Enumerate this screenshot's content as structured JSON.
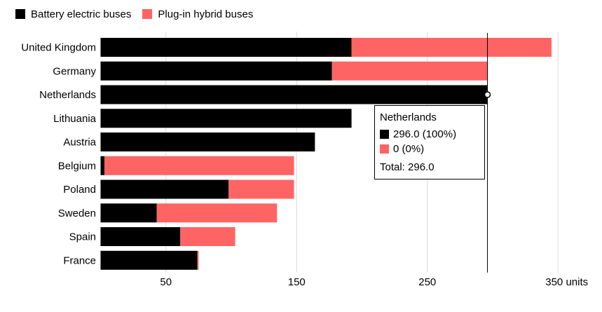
{
  "colors": {
    "bev": "#000000",
    "phev": "#ff6464",
    "grid": "#d9d9d9"
  },
  "chart_data": {
    "type": "bar",
    "orientation": "horizontal",
    "stacked": true,
    "categories": [
      "United Kingdom",
      "Germany",
      "Netherlands",
      "Lithuania",
      "Austria",
      "Belgium",
      "Poland",
      "Sweden",
      "Spain",
      "France"
    ],
    "series": [
      {
        "name": "Battery electric buses",
        "color": "#000000",
        "values": [
          192,
          177,
          296,
          192,
          164,
          3,
          98,
          43,
          61,
          74
        ]
      },
      {
        "name": "Plug-in hybrid buses",
        "color": "#ff6464",
        "values": [
          153,
          119,
          0,
          0,
          0,
          145,
          50,
          92,
          42,
          1
        ]
      }
    ],
    "xlim": [
      0,
      350
    ],
    "xticks": [
      {
        "value": 50,
        "label": "50"
      },
      {
        "value": 150,
        "label": "150"
      },
      {
        "value": 250,
        "label": "250"
      },
      {
        "value": 350,
        "label": "350 units"
      }
    ],
    "grid": true,
    "legend": "top-left",
    "highlight": {
      "category": "Netherlands",
      "value": 296
    }
  },
  "tooltip": {
    "title": "Netherlands",
    "bev_text": "296.0  (100%)",
    "phev_text": "0  (0%)",
    "total_text": "Total: 296.0"
  }
}
